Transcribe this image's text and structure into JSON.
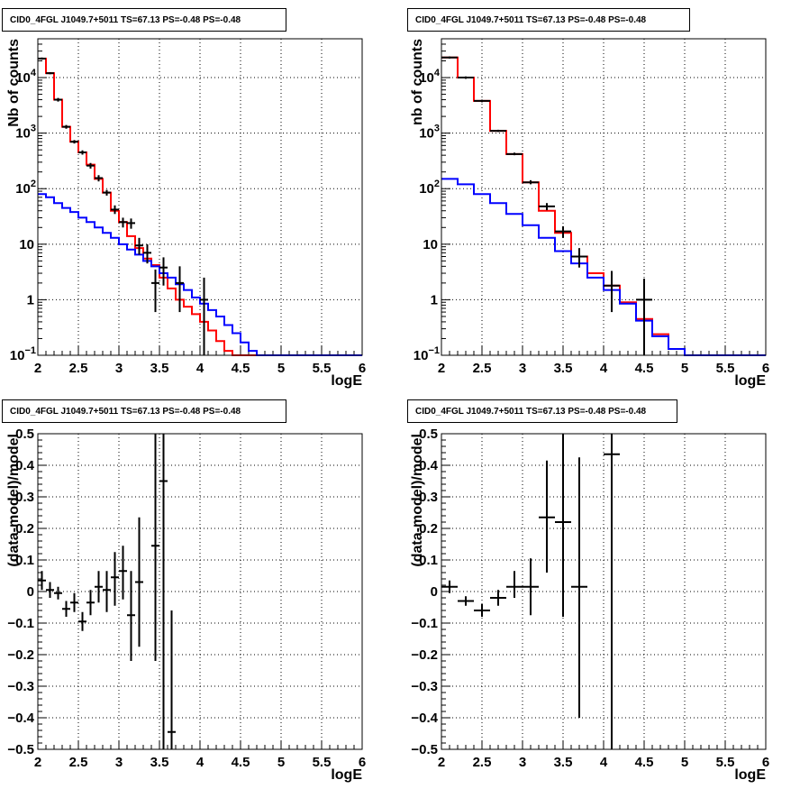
{
  "chart_data": [
    {
      "type": "line",
      "title": "CID0_4FGL J1049.7+5011 TS=67.13 PS=-0.48 PS=-0.48",
      "xlabel": "logE",
      "ylabel": "Nb of counts",
      "xlim": [
        2,
        6
      ],
      "ylim": [
        0.1,
        50000
      ],
      "yscale": "log",
      "grid": true,
      "xticks": [
        "2",
        "2.5",
        "3",
        "3.5",
        "4",
        "4.5",
        "5",
        "5.5",
        "6"
      ],
      "yticks": [
        {
          "v": 0.1,
          "label": "10",
          "sup": "−1"
        },
        {
          "v": 1,
          "label": "1",
          "sup": ""
        },
        {
          "v": 10,
          "label": "10",
          "sup": ""
        },
        {
          "v": 100,
          "label": "10",
          "sup": "2"
        },
        {
          "v": 1000,
          "label": "10",
          "sup": "3"
        },
        {
          "v": 10000,
          "label": "10",
          "sup": "4"
        }
      ],
      "bin_edges": [
        2.0,
        2.1,
        2.2,
        2.3,
        2.4,
        2.5,
        2.6,
        2.7,
        2.8,
        2.9,
        3.0,
        3.1,
        3.2,
        3.3,
        3.4,
        3.5,
        3.6,
        3.7,
        3.8,
        3.9,
        4.0,
        4.1,
        4.2,
        4.3,
        4.4,
        4.5,
        4.6,
        4.7,
        4.8,
        4.9,
        5.0,
        5.1,
        5.2,
        5.3,
        5.4,
        5.5,
        5.6,
        5.7,
        5.8,
        5.9,
        6.0
      ],
      "series": [
        {
          "name": "",
          "color": "#ff0000",
          "values": [
            22000,
            12000,
            4000,
            1300,
            700,
            450,
            270,
            150,
            85,
            40,
            25,
            14,
            8.5,
            5.5,
            4.2,
            2.5,
            1.6,
            1.0,
            0.75,
            0.55,
            0.4,
            0.28,
            0.18,
            0.12,
            0.1,
            0.1,
            0.1,
            0.1,
            0.1,
            0.1,
            0.1,
            0.1,
            0.1,
            0.1,
            0.1,
            0.1,
            0.1,
            0.1,
            0.1,
            0.1
          ]
        },
        {
          "name": "",
          "color": "#0000ff",
          "values": [
            80,
            70,
            55,
            45,
            38,
            30,
            25,
            20,
            16,
            13,
            10,
            8,
            6.5,
            5,
            4,
            3,
            2.5,
            1.9,
            1.5,
            1.1,
            0.85,
            0.65,
            0.5,
            0.35,
            0.25,
            0.17,
            0.12,
            0.1,
            0.1,
            0.1,
            0.1,
            0.1,
            0.1,
            0.1,
            0.1,
            0.1,
            0.1,
            0.1,
            0.1,
            0.1
          ]
        }
      ],
      "points": [
        {
          "x": 2.05,
          "y": 22000,
          "lo": 21000,
          "hi": 23000
        },
        {
          "x": 2.15,
          "y": 12000,
          "lo": 11500,
          "hi": 12500
        },
        {
          "x": 2.25,
          "y": 4000,
          "lo": 3700,
          "hi": 4300
        },
        {
          "x": 2.35,
          "y": 1300,
          "lo": 1200,
          "hi": 1400
        },
        {
          "x": 2.45,
          "y": 700,
          "lo": 650,
          "hi": 750
        },
        {
          "x": 2.55,
          "y": 450,
          "lo": 410,
          "hi": 490
        },
        {
          "x": 2.65,
          "y": 260,
          "lo": 230,
          "hi": 290
        },
        {
          "x": 2.75,
          "y": 155,
          "lo": 135,
          "hi": 175
        },
        {
          "x": 2.85,
          "y": 85,
          "lo": 75,
          "hi": 95
        },
        {
          "x": 2.95,
          "y": 42,
          "lo": 35,
          "hi": 50
        },
        {
          "x": 3.05,
          "y": 25,
          "lo": 20,
          "hi": 30
        },
        {
          "x": 3.15,
          "y": 24,
          "lo": 19,
          "hi": 29
        },
        {
          "x": 3.25,
          "y": 9.5,
          "lo": 6.5,
          "hi": 13
        },
        {
          "x": 3.35,
          "y": 7,
          "lo": 4.5,
          "hi": 10
        },
        {
          "x": 3.45,
          "y": 2,
          "lo": 0.6,
          "hi": 3.5
        },
        {
          "x": 3.55,
          "y": 3.8,
          "lo": 1.8,
          "hi": 5.8
        },
        {
          "x": 3.75,
          "y": 2,
          "lo": 0.6,
          "hi": 4
        },
        {
          "x": 4.05,
          "y": 1,
          "lo": 0.1,
          "hi": 2.5
        }
      ]
    },
    {
      "type": "line",
      "title": "CID0_4FGL J1049.7+5011 TS=67.13 PS=-0.48 PS=-0.48",
      "xlabel": "logE",
      "ylabel": "nb of counts",
      "xlim": [
        2,
        6
      ],
      "ylim": [
        0.1,
        50000
      ],
      "yscale": "log",
      "grid": true,
      "xticks": [
        "2",
        "2.5",
        "3",
        "3.5",
        "4",
        "4.5",
        "5",
        "5.5",
        "6"
      ],
      "yticks": [
        {
          "v": 0.1,
          "label": "10",
          "sup": "−1"
        },
        {
          "v": 1,
          "label": "1",
          "sup": ""
        },
        {
          "v": 10,
          "label": "10",
          "sup": ""
        },
        {
          "v": 100,
          "label": "10",
          "sup": "2"
        },
        {
          "v": 1000,
          "label": "10",
          "sup": "3"
        },
        {
          "v": 10000,
          "label": "10",
          "sup": "4"
        }
      ],
      "bin_edges": [
        2.0,
        2.2,
        2.4,
        2.6,
        2.8,
        3.0,
        3.2,
        3.4,
        3.6,
        3.8,
        4.0,
        4.2,
        4.4,
        4.6,
        4.8,
        5.0,
        5.2,
        5.4,
        5.6,
        5.8,
        6.0
      ],
      "series": [
        {
          "name": "",
          "color": "#ff0000",
          "values": [
            23000,
            10000,
            3800,
            1100,
            420,
            130,
            40,
            16,
            6,
            3,
            1.8,
            0.9,
            0.45,
            0.24,
            0.13,
            0.1,
            0.1,
            0.1,
            0.1,
            0.1
          ]
        },
        {
          "name": "",
          "color": "#0000ff",
          "values": [
            150,
            120,
            80,
            55,
            35,
            22,
            13,
            7.5,
            4.5,
            2.5,
            1.5,
            0.85,
            0.42,
            0.22,
            0.13,
            0.1,
            0.1,
            0.1,
            0.1,
            0.1
          ]
        }
      ],
      "points": [
        {
          "x": 2.1,
          "y": 23000,
          "lo": 22000,
          "hi": 24000
        },
        {
          "x": 2.3,
          "y": 10000,
          "lo": 9500,
          "hi": 10500
        },
        {
          "x": 2.5,
          "y": 3800,
          "lo": 3600,
          "hi": 4000
        },
        {
          "x": 2.7,
          "y": 1100,
          "lo": 1050,
          "hi": 1150
        },
        {
          "x": 2.9,
          "y": 420,
          "lo": 400,
          "hi": 445
        },
        {
          "x": 3.1,
          "y": 130,
          "lo": 120,
          "hi": 142
        },
        {
          "x": 3.3,
          "y": 48,
          "lo": 41,
          "hi": 55
        },
        {
          "x": 3.5,
          "y": 17,
          "lo": 13,
          "hi": 21
        },
        {
          "x": 3.7,
          "y": 6,
          "lo": 3.8,
          "hi": 8.5
        },
        {
          "x": 4.1,
          "y": 1.8,
          "lo": 0.6,
          "hi": 3.3
        },
        {
          "x": 4.5,
          "y": 1,
          "lo": 0.1,
          "hi": 2.4
        }
      ]
    },
    {
      "type": "scatter",
      "title": "CID0_4FGL J1049.7+5011 TS=67.13 PS=-0.48 PS=-0.48",
      "xlabel": "logE",
      "ylabel": "(data-model)/model",
      "xlim": [
        2,
        6
      ],
      "ylim": [
        -0.5,
        0.5
      ],
      "yscale": "linear",
      "grid": true,
      "xticks": [
        "2",
        "2.5",
        "3",
        "3.5",
        "4",
        "4.5",
        "5",
        "5.5",
        "6"
      ],
      "yticks": [
        {
          "v": -0.5,
          "label": "−0.5",
          "sup": ""
        },
        {
          "v": -0.4,
          "label": "−0.4",
          "sup": ""
        },
        {
          "v": -0.3,
          "label": "−0.3",
          "sup": ""
        },
        {
          "v": -0.2,
          "label": "−0.2",
          "sup": ""
        },
        {
          "v": -0.1,
          "label": "−0.1",
          "sup": ""
        },
        {
          "v": 0,
          "label": "0",
          "sup": ""
        },
        {
          "v": 0.1,
          "label": "0.1",
          "sup": ""
        },
        {
          "v": 0.2,
          "label": "0.2",
          "sup": ""
        },
        {
          "v": 0.3,
          "label": "0.3",
          "sup": ""
        },
        {
          "v": 0.4,
          "label": "0.4",
          "sup": ""
        },
        {
          "v": 0.5,
          "label": "0.5",
          "sup": ""
        }
      ],
      "xerr": 0.05,
      "points": [
        {
          "x": 2.05,
          "y": 0.035,
          "lo": 0.005,
          "hi": 0.065
        },
        {
          "x": 2.15,
          "y": 0.005,
          "lo": -0.02,
          "hi": 0.03
        },
        {
          "x": 2.25,
          "y": -0.005,
          "lo": -0.025,
          "hi": 0.015
        },
        {
          "x": 2.35,
          "y": -0.055,
          "lo": -0.08,
          "hi": -0.03
        },
        {
          "x": 2.45,
          "y": -0.035,
          "lo": -0.065,
          "hi": -0.005
        },
        {
          "x": 2.55,
          "y": -0.095,
          "lo": -0.125,
          "hi": -0.065
        },
        {
          "x": 2.65,
          "y": -0.035,
          "lo": -0.075,
          "hi": 0.005
        },
        {
          "x": 2.75,
          "y": 0.015,
          "lo": -0.035,
          "hi": 0.065
        },
        {
          "x": 2.85,
          "y": 0.005,
          "lo": -0.065,
          "hi": 0.065
        },
        {
          "x": 2.95,
          "y": 0.045,
          "lo": -0.045,
          "hi": 0.125
        },
        {
          "x": 3.05,
          "y": 0.065,
          "lo": -0.025,
          "hi": 0.145
        },
        {
          "x": 3.15,
          "y": -0.075,
          "lo": -0.22,
          "hi": 0.065
        },
        {
          "x": 3.25,
          "y": 0.03,
          "lo": -0.175,
          "hi": 0.235
        },
        {
          "x": 3.45,
          "y": 0.145,
          "lo": -0.22,
          "hi": 0.5
        },
        {
          "x": 3.55,
          "y": 0.35,
          "lo": -0.5,
          "hi": 0.5
        },
        {
          "x": 3.65,
          "y": -0.445,
          "lo": -0.5,
          "hi": -0.06
        }
      ]
    },
    {
      "type": "scatter",
      "title": "CID0_4FGL J1049.7+5011 TS=67.13 PS=-0.48 PS=-0.48",
      "xlabel": "logE",
      "ylabel": "(data-model)/model",
      "xlim": [
        2,
        6
      ],
      "ylim": [
        -0.5,
        0.5
      ],
      "yscale": "linear",
      "grid": true,
      "xticks": [
        "2",
        "2.5",
        "3",
        "3.5",
        "4",
        "4.5",
        "5",
        "5.5",
        "6"
      ],
      "yticks": [
        {
          "v": -0.5,
          "label": "−0.5",
          "sup": ""
        },
        {
          "v": -0.4,
          "label": "−0.4",
          "sup": ""
        },
        {
          "v": -0.3,
          "label": "−0.3",
          "sup": ""
        },
        {
          "v": -0.2,
          "label": "−0.2",
          "sup": ""
        },
        {
          "v": -0.1,
          "label": "−0.1",
          "sup": ""
        },
        {
          "v": 0,
          "label": "0",
          "sup": ""
        },
        {
          "v": 0.1,
          "label": "0.1",
          "sup": ""
        },
        {
          "v": 0.2,
          "label": "0.2",
          "sup": ""
        },
        {
          "v": 0.3,
          "label": "0.3",
          "sup": ""
        },
        {
          "v": 0.4,
          "label": "0.4",
          "sup": ""
        },
        {
          "v": 0.5,
          "label": "0.5",
          "sup": ""
        }
      ],
      "xerr": 0.1,
      "points": [
        {
          "x": 2.1,
          "y": 0.015,
          "lo": -0.005,
          "hi": 0.035
        },
        {
          "x": 2.3,
          "y": -0.03,
          "lo": -0.045,
          "hi": -0.015
        },
        {
          "x": 2.5,
          "y": -0.06,
          "lo": -0.08,
          "hi": -0.04
        },
        {
          "x": 2.7,
          "y": -0.02,
          "lo": -0.045,
          "hi": 0.005
        },
        {
          "x": 2.9,
          "y": 0.015,
          "lo": -0.02,
          "hi": 0.065
        },
        {
          "x": 3.1,
          "y": 0.015,
          "lo": -0.075,
          "hi": 0.105
        },
        {
          "x": 3.3,
          "y": 0.235,
          "lo": 0.06,
          "hi": 0.415
        },
        {
          "x": 3.5,
          "y": 0.22,
          "lo": -0.08,
          "hi": 0.5
        },
        {
          "x": 3.7,
          "y": 0.015,
          "lo": -0.4,
          "hi": 0.425
        },
        {
          "x": 4.1,
          "y": 0.435,
          "lo": -0.5,
          "hi": 0.5
        }
      ]
    }
  ]
}
